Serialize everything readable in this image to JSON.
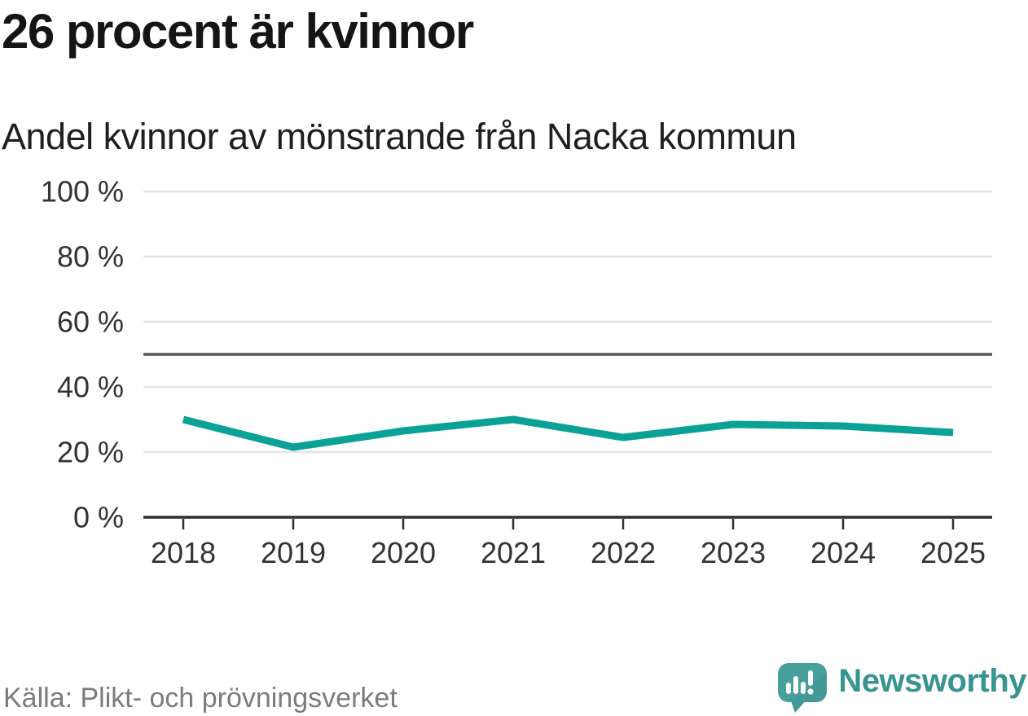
{
  "header": {
    "title": "26 procent är kvinnor",
    "subtitle": "Andel kvinnor av mönstrande från Nacka kommun"
  },
  "footer": {
    "source": "Källa: Plikt- och prövningsverket",
    "brand": "Newsworthy"
  },
  "icons": {
    "logo": "newsworthy-speech-bubble-bar-chart-icon"
  },
  "colors": {
    "line": "#0aa296",
    "reference_line": "#55565a",
    "gridline": "#e4e4e4",
    "axis": "#2e2e2e",
    "tick_label": "#333333",
    "title": "#151515",
    "subtitle": "#1f1f1f",
    "source_text": "#7b7b80",
    "brand_text": "#38948f",
    "logo_badge": "#47a09b",
    "logo_badge_shade": "#3e938f"
  },
  "chart_data": {
    "type": "line",
    "title": "26 procent är kvinnor",
    "subtitle": "Andel kvinnor av mönstrande från Nacka kommun",
    "x": [
      2018,
      2019,
      2020,
      2021,
      2022,
      2023,
      2024,
      2025
    ],
    "series": [
      {
        "name": "Andel kvinnor av mönstrande",
        "color": "#0aa296",
        "values": [
          30,
          21.5,
          26.5,
          30,
          24.5,
          28.5,
          28,
          26
        ]
      }
    ],
    "ylim": [
      0,
      100
    ],
    "yticks": [
      0,
      20,
      40,
      60,
      80,
      100
    ],
    "ytick_suffix": " %",
    "reference_line": 50,
    "grid": true,
    "legend": false,
    "source": "Källa: Plikt- och prövningsverket"
  }
}
